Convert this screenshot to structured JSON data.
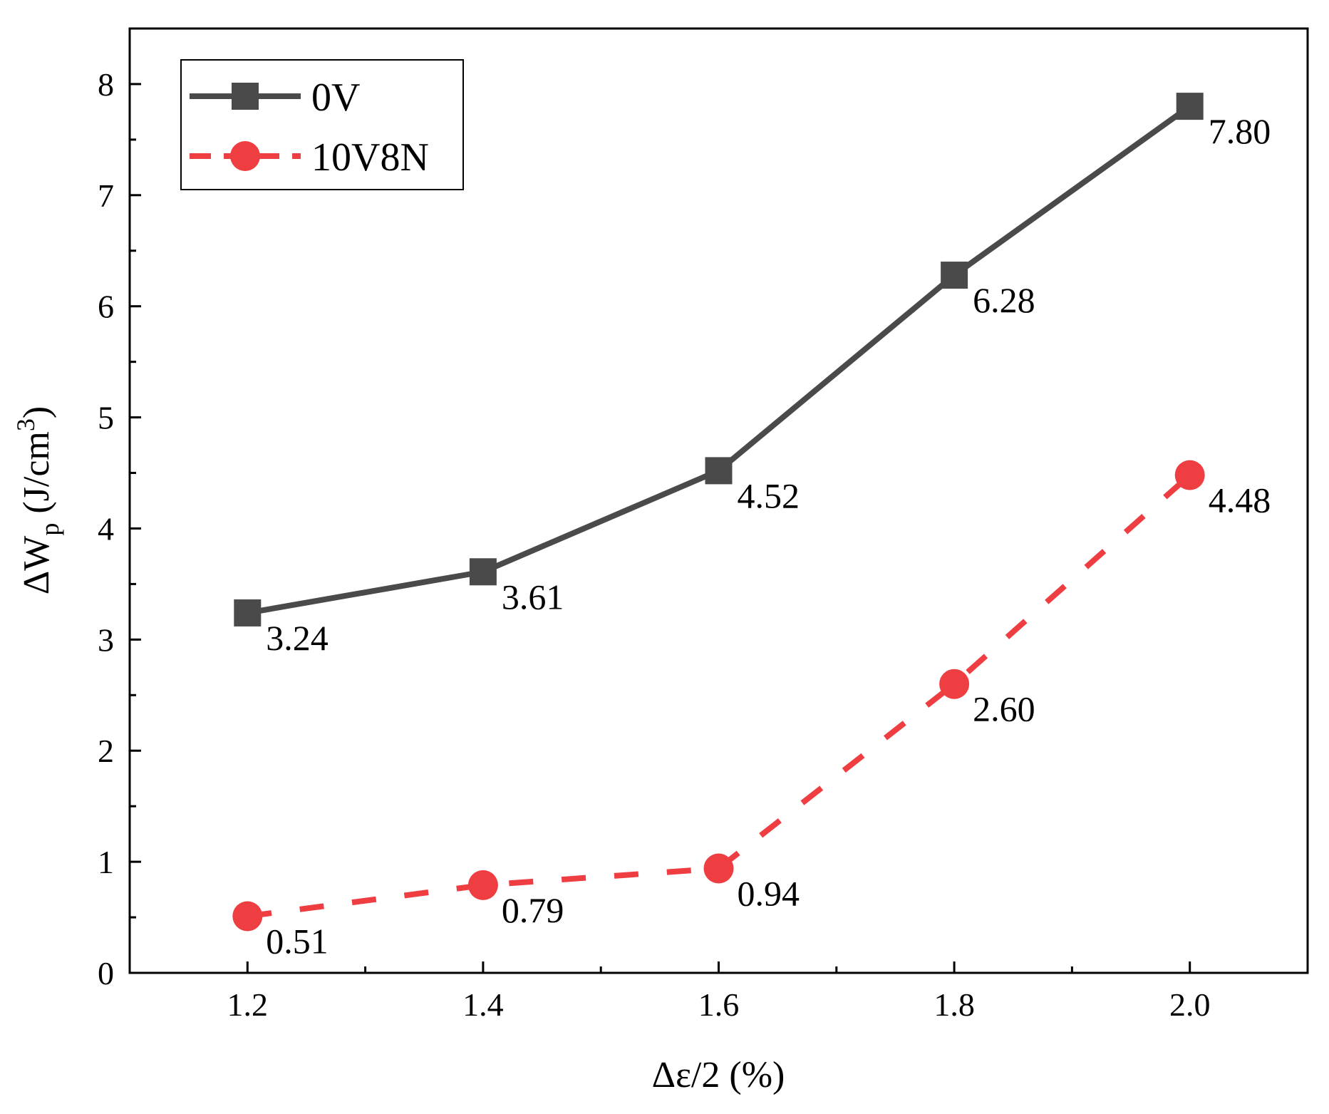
{
  "chart_data": {
    "type": "line",
    "x": [
      1.2,
      1.4,
      1.6,
      1.8,
      2.0
    ],
    "x_ticks": [
      "1.2",
      "1.4",
      "1.6",
      "1.8",
      "2.0"
    ],
    "y_ticks": [
      "0",
      "1",
      "2",
      "3",
      "4",
      "5",
      "6",
      "7",
      "8"
    ],
    "xlim": [
      1.1,
      2.1
    ],
    "ylim": [
      0,
      8.5
    ],
    "xlabel": "Δε/2 (%)",
    "ylabel": {
      "prefix": "ΔW",
      "subscript": "p",
      "unit_start": " (J/cm",
      "superscript": "3",
      "unit_end": ")"
    },
    "grid": false,
    "legend_position": "top-left",
    "series": [
      {
        "name": "0V",
        "values": [
          3.24,
          3.61,
          4.52,
          6.28,
          7.8
        ],
        "labels": [
          "3.24",
          "3.61",
          "4.52",
          "6.28",
          "7.80"
        ],
        "color": "#4a4a4a",
        "marker": "square",
        "line_style": "solid"
      },
      {
        "name": "10V8N",
        "values": [
          0.51,
          0.79,
          0.94,
          2.6,
          4.48
        ],
        "labels": [
          "0.51",
          "0.79",
          "0.94",
          "2.60",
          "4.48"
        ],
        "color": "#ef3e42",
        "marker": "circle",
        "line_style": "dashed"
      }
    ]
  }
}
